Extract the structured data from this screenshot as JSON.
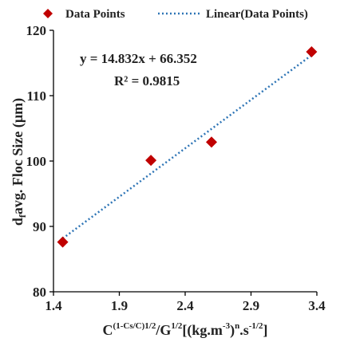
{
  "chart_data": {
    "type": "scatter",
    "title": "",
    "xlabel_parts": {
      "c": "C",
      "exp1": "(1-Cs/C)1/2",
      "slash_g": "/G",
      "exp2": "1/2",
      "bracket": "[(kg.m",
      "exp3": "-3",
      "close_n": ")",
      "exp_n": "n",
      "dot_s": ".s",
      "exp4": "-1/2",
      "end": "]"
    },
    "ylabel_parts": {
      "d": "d",
      "sub": "f",
      "rest": "avg.  Floc Size (µm)"
    },
    "xlim": [
      1.4,
      3.4
    ],
    "ylim": [
      80,
      120
    ],
    "x_ticks": [
      "1.4",
      "1.9",
      "2.4",
      "2.9",
      "3.4"
    ],
    "y_ticks": [
      "80",
      "90",
      "100",
      "110",
      "120"
    ],
    "x_tick_values": [
      1.4,
      1.9,
      2.4,
      2.9,
      3.4
    ],
    "y_tick_values": [
      80,
      90,
      100,
      110,
      120
    ],
    "series": [
      {
        "name": "Data Points",
        "color": "#c00000",
        "marker": "diamond",
        "x": [
          1.47,
          2.14,
          2.6,
          3.36
        ],
        "y": [
          87.6,
          100.1,
          102.9,
          116.7
        ]
      }
    ],
    "trendline": {
      "name": "Linear(Data Points)",
      "color": "#2e75b6",
      "style": "dotted",
      "slope": 14.832,
      "intercept": 66.352,
      "x_range": [
        1.47,
        3.36
      ]
    },
    "equation": "y = 14.832x + 66.352",
    "r2_label": "R² = 0.9815",
    "legend": {
      "position": "top",
      "items": [
        "Data Points",
        "Linear(Data Points)"
      ]
    },
    "grid": false
  }
}
